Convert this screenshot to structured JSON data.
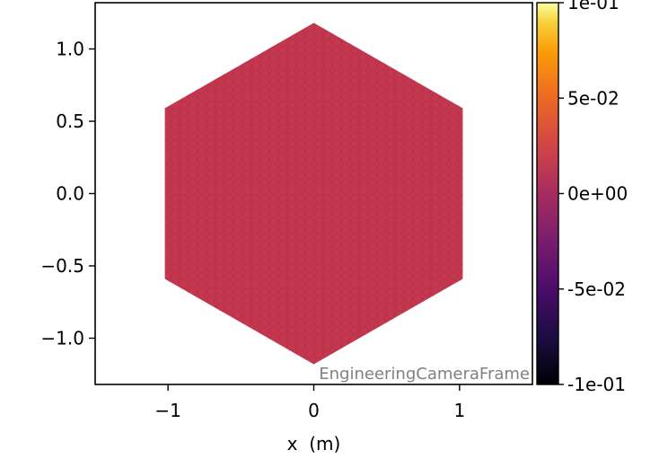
{
  "chart_data": {
    "type": "heatmap",
    "title": "",
    "xlabel": "x  (m)",
    "ylabel": "",
    "xlim": [
      -1.5,
      1.5
    ],
    "ylim": [
      -1.32,
      1.32
    ],
    "x_ticks": [
      {
        "value": -1,
        "label": "−1"
      },
      {
        "value": 0,
        "label": "0"
      },
      {
        "value": 1,
        "label": "1"
      }
    ],
    "y_ticks": [
      {
        "value": 1.0,
        "label": "1.0"
      },
      {
        "value": 0.5,
        "label": "0.5"
      },
      {
        "value": 0.0,
        "label": "0.0"
      },
      {
        "value": -0.5,
        "label": "−0.5"
      },
      {
        "value": -1.0,
        "label": "−1.0"
      }
    ],
    "hexagon": {
      "circumradius": 1.18,
      "orientation": "pointy-top",
      "uniform_value": 0.0,
      "fill_color": "#c3374f"
    },
    "colorbar": {
      "colormap": "inferno",
      "range": [
        -0.1,
        0.1
      ],
      "ticks": [
        {
          "value": 0.1,
          "label": "1e-01"
        },
        {
          "value": 0.05,
          "label": "5e-02"
        },
        {
          "value": 0.0,
          "label": "0e+00"
        },
        {
          "value": -0.05,
          "label": "-5e-02"
        },
        {
          "value": -0.1,
          "label": "-1e-01"
        }
      ]
    },
    "frame_label": "EngineeringCameraFrame",
    "grid": false
  }
}
